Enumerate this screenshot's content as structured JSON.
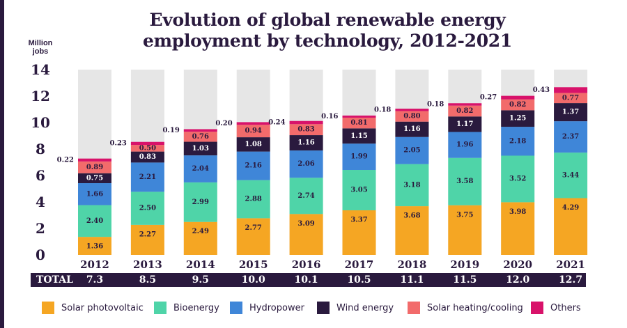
{
  "title_line1": "Evolution of global renewable energy",
  "title_line2": "employment by technology, 2012-2021",
  "unit_line1": "Million",
  "unit_line2": "jobs",
  "total_label": "TOTAL",
  "colors": {
    "solar_pv": "#f5a623",
    "bioenergy": "#4fd4a8",
    "hydropower": "#3f86d8",
    "wind": "#2a1a3e",
    "solar_heating": "#f26b6b",
    "others": "#d8126a",
    "background_bar": "#e6e6e6",
    "text_dark": "#2a1a3e"
  },
  "chart_data": {
    "type": "bar",
    "stacked": true,
    "title": "Evolution of global renewable energy employment by technology, 2012-2021",
    "ylabel": "Million jobs",
    "ylim": [
      0,
      14
    ],
    "yticks": [
      0,
      2,
      4,
      6,
      8,
      10,
      12,
      14
    ],
    "categories": [
      "2012",
      "2013",
      "2014",
      "2015",
      "2016",
      "2017",
      "2018",
      "2019",
      "2020",
      "2021"
    ],
    "totals": [
      "7.3",
      "8.5",
      "9.5",
      "10.0",
      "10.1",
      "10.5",
      "11.1",
      "11.5",
      "12.0",
      "12.7"
    ],
    "series": [
      {
        "name": "Solar photovoltaic",
        "key": "solar_pv",
        "values": [
          1.36,
          2.27,
          2.49,
          2.77,
          3.09,
          3.37,
          3.68,
          3.75,
          3.98,
          4.29
        ],
        "labels": [
          "1.36",
          "2.27",
          "2.49",
          "2.77",
          "3.09",
          "3.37",
          "3.68",
          "3.75",
          "3.98",
          "4.29"
        ]
      },
      {
        "name": "Bioenergy",
        "key": "bioenergy",
        "values": [
          2.4,
          2.5,
          2.99,
          2.88,
          2.74,
          3.05,
          3.18,
          3.58,
          3.52,
          3.44
        ],
        "labels": [
          "2.40",
          "2.50",
          "2.99",
          "2.88",
          "2.74",
          "3.05",
          "3.18",
          "3.58",
          "3.52",
          "3.44"
        ]
      },
      {
        "name": "Hydropower",
        "key": "hydropower",
        "values": [
          1.66,
          2.21,
          2.04,
          2.16,
          2.06,
          1.99,
          2.05,
          1.96,
          2.18,
          2.37
        ],
        "labels": [
          "1.66",
          "2.21",
          "2.04",
          "2.16",
          "2.06",
          "1.99",
          "2.05",
          "1.96",
          "2.18",
          "2.37"
        ]
      },
      {
        "name": "Wind energy",
        "key": "wind",
        "values": [
          0.75,
          0.83,
          1.03,
          1.08,
          1.16,
          1.15,
          1.16,
          1.17,
          1.25,
          1.37
        ],
        "labels": [
          "0.75",
          "0.83",
          "1.03",
          "1.08",
          "1.16",
          "1.15",
          "1.16",
          "1.17",
          "1.25",
          "1.37"
        ]
      },
      {
        "name": "Solar heating/cooling",
        "key": "solar_heating",
        "values": [
          0.89,
          0.5,
          0.76,
          0.94,
          0.83,
          0.81,
          0.8,
          0.82,
          0.82,
          0.77
        ],
        "labels": [
          "0.89",
          "0.50",
          "0.76",
          "0.94",
          "0.83",
          "0.81",
          "0.80",
          "0.82",
          "0.82",
          "0.77"
        ]
      },
      {
        "name": "Others",
        "key": "others",
        "values": [
          0.22,
          0.23,
          0.19,
          0.2,
          0.24,
          0.16,
          0.18,
          0.18,
          0.27,
          0.43
        ],
        "labels": [
          "0.22",
          "0.23",
          "0.19",
          "0.20",
          "0.24",
          "0.16",
          "0.18",
          "0.18",
          "0.27",
          "0.43"
        ]
      }
    ]
  }
}
